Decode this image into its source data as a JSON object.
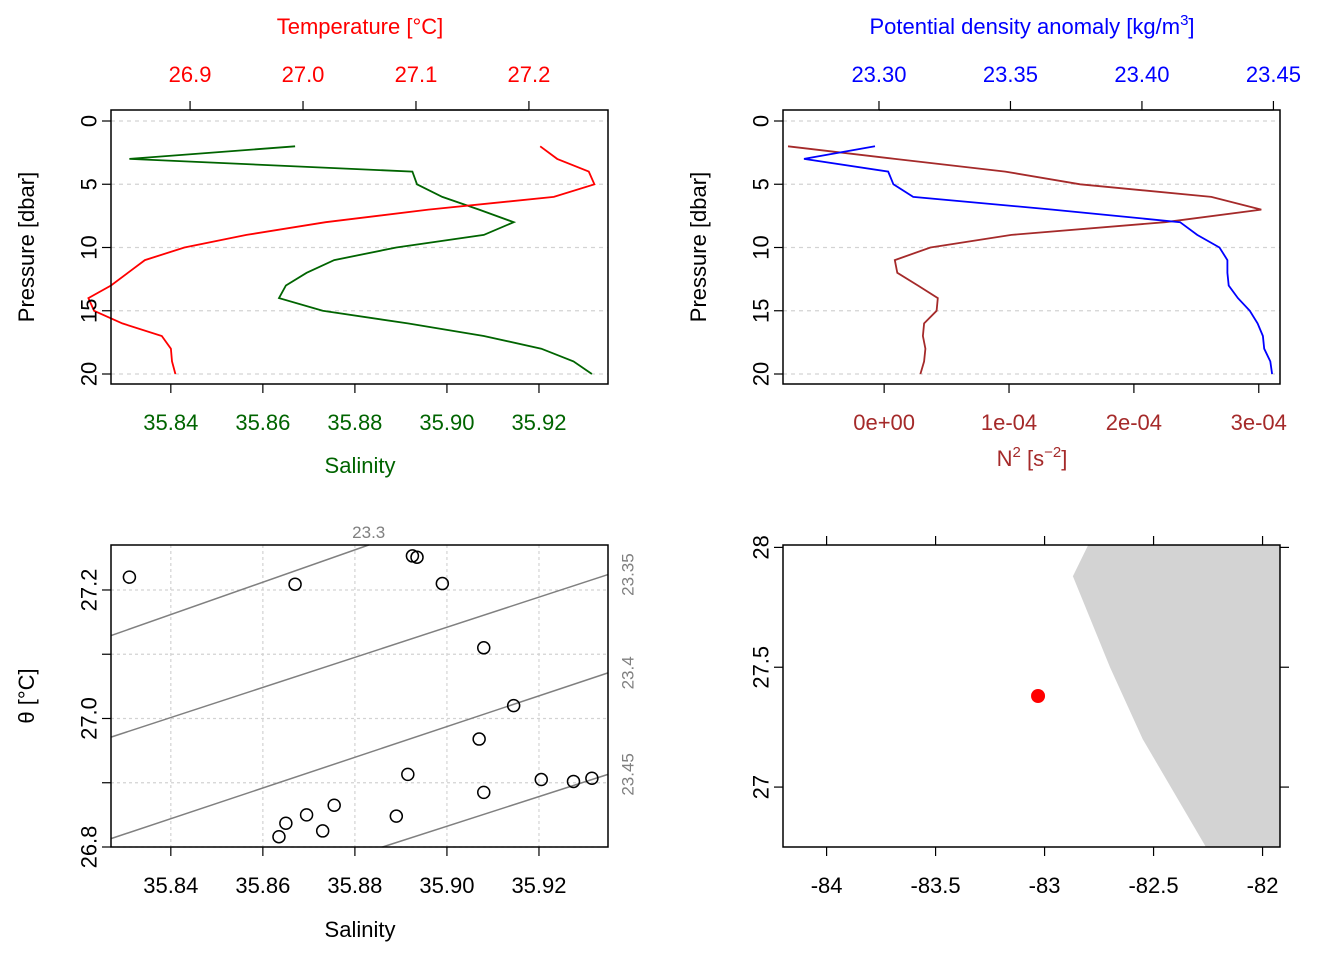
{
  "colors": {
    "temperature": "#ff0000",
    "salinity": "#006400",
    "density": "#0000ff",
    "n2": "#a52a2a",
    "isopycnal": "#808080",
    "grid": "#d3d3d3",
    "land": "#d3d3d3",
    "station": "#ff0000"
  },
  "chart_data": [
    {
      "panel": "salinity-temperature-profile",
      "type": "line",
      "pressure_axis": {
        "label": "Pressure [dbar]",
        "ylim": [
          20,
          0
        ],
        "ticks": [
          "0",
          "5",
          "10",
          "15",
          "20"
        ]
      },
      "temperature_axis": {
        "label": "Temperature [°C]",
        "xlim": [
          26.83,
          27.27
        ],
        "ticks": [
          "26.9",
          "27.0",
          "27.1",
          "27.2"
        ],
        "position": "top"
      },
      "salinity_axis": {
        "label": "Salinity",
        "xlim": [
          35.827,
          35.935
        ],
        "ticks": [
          "35.84",
          "35.86",
          "35.88",
          "35.90",
          "35.92"
        ],
        "position": "bottom"
      },
      "grid": "horizontal-dashed",
      "series": [
        {
          "name": "Temperature",
          "pressure": [
            2,
            3,
            4,
            5,
            6,
            7,
            8,
            9,
            10,
            11,
            12,
            13,
            14,
            15,
            16,
            17,
            18,
            19,
            20
          ],
          "values": [
            27.21,
            27.225,
            27.253,
            27.258,
            27.222,
            27.111,
            27.02,
            26.95,
            26.895,
            26.86,
            26.845,
            26.83,
            26.81,
            26.815,
            26.84,
            26.875,
            26.883,
            26.884,
            26.887
          ]
        },
        {
          "name": "Salinity",
          "pressure": [
            2,
            3,
            4,
            5,
            6,
            7,
            8,
            9,
            10,
            11,
            12,
            13,
            14,
            15,
            16,
            17,
            18,
            19,
            20
          ],
          "values": [
            35.867,
            35.831,
            35.8925,
            35.8935,
            35.899,
            35.907,
            35.9145,
            35.908,
            35.889,
            35.8755,
            35.8695,
            35.865,
            35.8635,
            35.873,
            35.8915,
            35.908,
            35.9205,
            35.9275,
            35.9315
          ]
        }
      ]
    },
    {
      "panel": "density-n2-profile",
      "type": "line",
      "pressure_axis": {
        "label": "Pressure [dbar]",
        "ylim": [
          20,
          0
        ],
        "ticks": [
          "0",
          "5",
          "10",
          "15",
          "20"
        ]
      },
      "density_axis": {
        "label": "Potential density anomaly [kg/m3]",
        "label_main": "Potential density anomaly [kg/m",
        "label_sup": "3",
        "label_end": "]",
        "xlim": [
          23.2635,
          23.4525
        ],
        "ticks": [
          "23.30",
          "23.35",
          "23.40",
          "23.45"
        ],
        "position": "top"
      },
      "n2_axis": {
        "label": "N2 [s-2]",
        "label_main": "N",
        "label_sup": "2",
        "label_mid": " [s",
        "label_sup2": "−2",
        "label_end": "]",
        "xlim": [
          -8.1e-05,
          0.000317
        ],
        "ticks": [
          "0e+00",
          "1e-04",
          "2e-04",
          "3e-04"
        ],
        "position": "bottom"
      },
      "grid": "horizontal-dashed",
      "series": [
        {
          "name": "Potential density anomaly",
          "pressure": [
            2,
            3,
            4,
            5,
            6,
            7,
            8,
            9,
            10,
            11,
            12,
            13,
            14,
            15,
            16,
            17,
            18,
            19,
            20
          ],
          "values": [
            23.2985,
            23.2715,
            23.3035,
            23.3055,
            23.313,
            23.366,
            23.4145,
            23.421,
            23.4295,
            23.4325,
            23.4325,
            23.433,
            23.4365,
            23.441,
            23.444,
            23.446,
            23.4465,
            23.4488,
            23.4495
          ]
        },
        {
          "name": "N2",
          "pressure": [
            2,
            3,
            4,
            5,
            6,
            7,
            8,
            9,
            10,
            11,
            12,
            13,
            14,
            15,
            16,
            17,
            18,
            19,
            20
          ],
          "values": [
            -7.7e-05,
            8.5e-06,
            9.7e-05,
            0.000157,
            0.000262,
            0.000302,
            0.000225,
            0.000102,
            3.7e-05,
            8.5e-06,
            1.05e-05,
            2.7e-05,
            4.3e-05,
            4.2e-05,
            3.2e-05,
            3.1e-05,
            3.3e-05,
            3.2e-05,
            2.9e-05
          ]
        }
      ]
    },
    {
      "panel": "ts-diagram",
      "type": "scatter",
      "xlabel": "Salinity",
      "ylabel": "θ [°C]",
      "xlim": [
        35.827,
        35.935
      ],
      "ylim": [
        26.8,
        27.27
      ],
      "x_ticks": [
        "35.84",
        "35.86",
        "35.88",
        "35.90",
        "35.92"
      ],
      "y_ticks": [
        "26.8",
        "27.0",
        "27.2"
      ],
      "grid": "dotted",
      "points": [
        {
          "x": 35.831,
          "y": 27.22
        },
        {
          "x": 35.867,
          "y": 27.209
        },
        {
          "x": 35.8925,
          "y": 27.253
        },
        {
          "x": 35.8935,
          "y": 27.251
        },
        {
          "x": 35.899,
          "y": 27.21
        },
        {
          "x": 35.908,
          "y": 27.11
        },
        {
          "x": 35.9145,
          "y": 27.02
        },
        {
          "x": 35.907,
          "y": 26.968
        },
        {
          "x": 35.8915,
          "y": 26.913
        },
        {
          "x": 35.9205,
          "y": 26.905
        },
        {
          "x": 35.9275,
          "y": 26.902
        },
        {
          "x": 35.9315,
          "y": 26.907
        },
        {
          "x": 35.908,
          "y": 26.885
        },
        {
          "x": 35.889,
          "y": 26.848
        },
        {
          "x": 35.8755,
          "y": 26.865
        },
        {
          "x": 35.8695,
          "y": 26.85
        },
        {
          "x": 35.865,
          "y": 26.837
        },
        {
          "x": 35.8635,
          "y": 26.816
        },
        {
          "x": 35.873,
          "y": 26.825
        }
      ],
      "isopycnals": [
        {
          "label": "23.3",
          "x1": 35.827,
          "y1": 27.129,
          "x2": 35.883,
          "y2": 27.27
        },
        {
          "label": "23.35",
          "x1": 35.827,
          "y1": 26.971,
          "x2": 35.935,
          "y2": 27.224
        },
        {
          "label": "23.4",
          "x1": 35.827,
          "y1": 26.813,
          "x2": 35.935,
          "y2": 27.071
        },
        {
          "label": "23.45",
          "x1": 35.886,
          "y1": 26.8,
          "x2": 35.935,
          "y2": 26.913
        }
      ]
    },
    {
      "panel": "location-map",
      "type": "map",
      "xlim": [
        -84.2,
        -81.92
      ],
      "ylim": [
        26.75,
        28.01
      ],
      "x_ticks": [
        "-84",
        "-83.5",
        "-83",
        "-82.5",
        "-82"
      ],
      "y_ticks": [
        "27",
        "27.5",
        "28"
      ],
      "station": {
        "lon": -83.03,
        "lat": 27.38
      },
      "coastline": [
        {
          "lon": -82.26,
          "lat": 26.75
        },
        {
          "lon": -82.55,
          "lat": 27.2
        },
        {
          "lon": -82.7,
          "lat": 27.5
        },
        {
          "lon": -82.87,
          "lat": 27.88
        },
        {
          "lon": -82.8,
          "lat": 28.01
        }
      ]
    }
  ]
}
